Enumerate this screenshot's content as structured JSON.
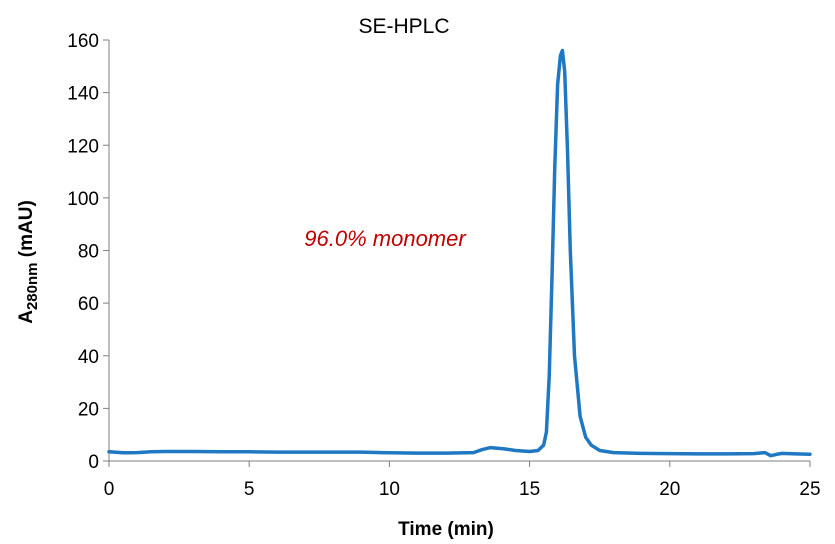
{
  "chart_data": {
    "type": "line",
    "title": "SE-HPLC",
    "xlabel": "Time (min)",
    "ylabel": {
      "main": "A",
      "subscript": "280nm",
      "suffix": " (mAU)"
    },
    "xlim": [
      0,
      25
    ],
    "ylim": [
      0,
      160
    ],
    "x_ticks": [
      0,
      5,
      10,
      15,
      20,
      25
    ],
    "y_ticks": [
      0,
      20,
      40,
      60,
      80,
      100,
      120,
      140,
      160
    ],
    "grid": false,
    "legend": "none",
    "annotation": "96.0% monomer",
    "annotation_color": "#C00000",
    "series": [
      {
        "color": "#1F78C1",
        "x": [
          0,
          0.5,
          1,
          1.5,
          2,
          3,
          4,
          5,
          6,
          7,
          8,
          9,
          10,
          11,
          12,
          13,
          13.3,
          13.6,
          13.8,
          14.1,
          14.5,
          15,
          15.3,
          15.5,
          15.6,
          15.7,
          15.8,
          15.9,
          16.0,
          16.1,
          16.17,
          16.25,
          16.35,
          16.45,
          16.6,
          16.8,
          17.0,
          17.2,
          17.5,
          18,
          19,
          20,
          21,
          22,
          23,
          23.4,
          23.6,
          23.8,
          24,
          24.5,
          25
        ],
        "y": [
          3.5,
          3.1,
          3.2,
          3.5,
          3.6,
          3.6,
          3.5,
          3.5,
          3.4,
          3.4,
          3.4,
          3.4,
          3.1,
          3.0,
          3.0,
          3.2,
          4.3,
          5.1,
          4.9,
          4.6,
          4.0,
          3.6,
          4.0,
          6.0,
          11.0,
          32.0,
          70.0,
          112.0,
          143.0,
          154.0,
          156.0,
          148.0,
          118.0,
          80.0,
          40.0,
          17.0,
          9.0,
          6.0,
          4.0,
          3.2,
          2.9,
          2.8,
          2.7,
          2.7,
          2.8,
          3.2,
          2.0,
          2.5,
          2.9,
          2.7,
          2.6
        ]
      }
    ]
  }
}
